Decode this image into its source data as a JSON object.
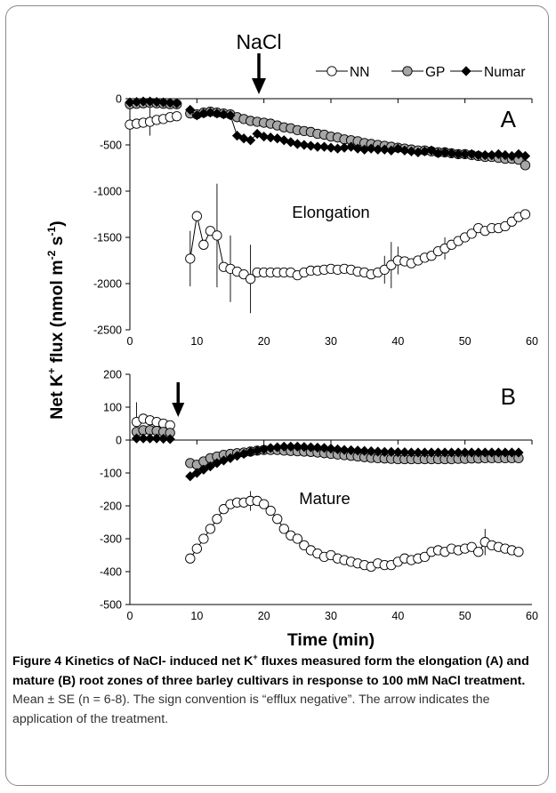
{
  "treatment_label": "NaCl",
  "ylabel": {
    "main": "Net K",
    "sup_k": "+",
    "mid": " flux (nmol m",
    "sup_m": "-2",
    "mid2": " s",
    "sup_s": "-1",
    "end": ")"
  },
  "colors": {
    "NN": "#ffffff",
    "GP": "#a6a6a6",
    "Numar": "#000000",
    "stroke": "#000000",
    "errorbar": "#000000"
  },
  "chart_data": [
    {
      "type": "scatter",
      "panel": "A",
      "annotation": "Elongation",
      "xlim": [
        0,
        60
      ],
      "ylim": [
        -2500,
        0
      ],
      "xticks": [
        0,
        10,
        20,
        30,
        40,
        50,
        60
      ],
      "yticks": [
        0,
        -500,
        -1000,
        -1500,
        -2000,
        -2500
      ],
      "arrow_x": 8.2,
      "legend": [
        "NN",
        "GP",
        "Numar"
      ],
      "legend_position": "top-right",
      "grid": false,
      "series": [
        {
          "name": "NN",
          "x": [
            0,
            1,
            2,
            3,
            4,
            5,
            6,
            7,
            9,
            10,
            11,
            12,
            13,
            14,
            15,
            16,
            17,
            18,
            19,
            20,
            21,
            22,
            23,
            24,
            25,
            26,
            27,
            28,
            29,
            30,
            31,
            32,
            33,
            34,
            35,
            36,
            37,
            38,
            39,
            40,
            41,
            42,
            43,
            44,
            45,
            46,
            47,
            48,
            49,
            50,
            51,
            52,
            53,
            54,
            55,
            56,
            57,
            58,
            59
          ],
          "y": [
            -280,
            -270,
            -260,
            -250,
            -230,
            -220,
            -200,
            -190,
            -1730,
            -1270,
            -1580,
            -1430,
            -1480,
            -1820,
            -1840,
            -1870,
            -1900,
            -1950,
            -1880,
            -1880,
            -1880,
            -1880,
            -1880,
            -1880,
            -1910,
            -1880,
            -1860,
            -1860,
            -1850,
            -1840,
            -1850,
            -1840,
            -1850,
            -1870,
            -1880,
            -1900,
            -1880,
            -1850,
            -1800,
            -1750,
            -1760,
            -1780,
            -1750,
            -1720,
            -1700,
            -1650,
            -1620,
            -1580,
            -1540,
            -1500,
            -1460,
            -1400,
            -1430,
            -1400,
            -1400,
            -1380,
            -1330,
            -1280,
            -1250
          ],
          "err": [
            0,
            0,
            0,
            150,
            0,
            0,
            0,
            0,
            300,
            0,
            0,
            0,
            560,
            0,
            360,
            0,
            0,
            370,
            0,
            0,
            0,
            0,
            0,
            0,
            0,
            0,
            0,
            0,
            0,
            0,
            0,
            0,
            0,
            0,
            0,
            0,
            0,
            150,
            250,
            150,
            0,
            0,
            0,
            0,
            0,
            0,
            120,
            0,
            0,
            0,
            0,
            0,
            0,
            0,
            0,
            0,
            0,
            0,
            0
          ]
        },
        {
          "name": "GP",
          "x": [
            0,
            1,
            2,
            3,
            4,
            5,
            6,
            7,
            9,
            10,
            11,
            12,
            13,
            14,
            15,
            16,
            17,
            18,
            19,
            20,
            21,
            22,
            23,
            24,
            25,
            26,
            27,
            28,
            29,
            30,
            31,
            32,
            33,
            34,
            35,
            36,
            37,
            38,
            39,
            40,
            41,
            42,
            43,
            44,
            45,
            46,
            47,
            48,
            49,
            50,
            51,
            52,
            53,
            54,
            55,
            56,
            57,
            58,
            59
          ],
          "y": [
            -60,
            -55,
            -50,
            -45,
            -50,
            -55,
            -60,
            -60,
            -160,
            -170,
            -150,
            -140,
            -150,
            -160,
            -170,
            -200,
            -220,
            -240,
            -250,
            -260,
            -270,
            -290,
            -310,
            -320,
            -340,
            -350,
            -360,
            -380,
            -390,
            -410,
            -420,
            -440,
            -450,
            -460,
            -480,
            -490,
            -500,
            -510,
            -520,
            -530,
            -540,
            -550,
            -560,
            -560,
            -570,
            -580,
            -580,
            -590,
            -600,
            -600,
            -610,
            -620,
            -630,
            -630,
            -640,
            -650,
            -650,
            -660,
            -720
          ],
          "err": [
            0,
            0,
            0,
            0,
            0,
            0,
            0,
            0,
            0,
            0,
            0,
            0,
            0,
            0,
            0,
            0,
            0,
            0,
            0,
            0,
            0,
            0,
            0,
            0,
            0,
            0,
            0,
            0,
            0,
            0,
            0,
            0,
            0,
            0,
            0,
            0,
            0,
            0,
            0,
            0,
            0,
            0,
            0,
            0,
            0,
            0,
            0,
            0,
            0,
            0,
            0,
            0,
            0,
            0,
            0,
            0,
            0,
            0,
            0
          ]
        },
        {
          "name": "Numar",
          "x": [
            0,
            1,
            2,
            3,
            4,
            5,
            6,
            7,
            9,
            10,
            11,
            12,
            13,
            14,
            15,
            16,
            17,
            18,
            19,
            20,
            21,
            22,
            23,
            24,
            25,
            26,
            27,
            28,
            29,
            30,
            31,
            32,
            33,
            34,
            35,
            36,
            37,
            38,
            39,
            40,
            41,
            42,
            43,
            44,
            45,
            46,
            47,
            48,
            49,
            50,
            51,
            52,
            53,
            54,
            55,
            56,
            57,
            58,
            59
          ],
          "y": [
            -40,
            -35,
            -30,
            -30,
            -35,
            -40,
            -45,
            -50,
            -120,
            -180,
            -160,
            -150,
            -160,
            -170,
            -180,
            -400,
            -430,
            -450,
            -380,
            -410,
            -420,
            -430,
            -450,
            -470,
            -490,
            -500,
            -510,
            -520,
            -520,
            -530,
            -540,
            -530,
            -520,
            -540,
            -550,
            -540,
            -550,
            -550,
            -560,
            -540,
            -560,
            -570,
            -580,
            -570,
            -560,
            -590,
            -580,
            -590,
            -600,
            -600,
            -600,
            -610,
            -610,
            -610,
            -600,
            -610,
            -620,
            -600,
            -620
          ],
          "err": [
            0,
            0,
            0,
            0,
            0,
            0,
            0,
            0,
            0,
            0,
            0,
            0,
            0,
            0,
            0,
            0,
            0,
            0,
            0,
            0,
            0,
            0,
            0,
            0,
            0,
            0,
            0,
            0,
            0,
            0,
            0,
            0,
            0,
            0,
            0,
            0,
            0,
            0,
            0,
            0,
            0,
            0,
            0,
            0,
            0,
            0,
            0,
            0,
            0,
            0,
            0,
            0,
            0,
            0,
            0,
            0,
            0,
            0,
            0
          ]
        }
      ]
    },
    {
      "type": "scatter",
      "panel": "B",
      "annotation": "Mature",
      "xlim": [
        0,
        60
      ],
      "ylim": [
        -500,
        200
      ],
      "xticks": [
        0,
        10,
        20,
        30,
        40,
        50,
        60
      ],
      "yticks": [
        200,
        100,
        0,
        -100,
        -200,
        -300,
        -400,
        -500
      ],
      "arrow_x": 7.2,
      "xlabel": "Time (min)",
      "grid": false,
      "series": [
        {
          "name": "NN",
          "x": [
            1,
            2,
            3,
            4,
            5,
            6,
            9,
            10,
            11,
            12,
            13,
            14,
            15,
            16,
            17,
            18,
            19,
            20,
            21,
            22,
            23,
            24,
            25,
            26,
            27,
            28,
            29,
            30,
            31,
            32,
            33,
            34,
            35,
            36,
            37,
            38,
            39,
            40,
            41,
            42,
            43,
            44,
            45,
            46,
            47,
            48,
            49,
            50,
            51,
            52,
            53,
            54,
            55,
            56,
            57,
            58
          ],
          "y": [
            55,
            65,
            60,
            55,
            50,
            45,
            -360,
            -330,
            -300,
            -270,
            -240,
            -210,
            -195,
            -190,
            -190,
            -185,
            -185,
            -195,
            -215,
            -240,
            -270,
            -290,
            -300,
            -320,
            -335,
            -345,
            -355,
            -350,
            -360,
            -365,
            -370,
            -375,
            -380,
            -385,
            -375,
            -380,
            -380,
            -370,
            -360,
            -365,
            -360,
            -355,
            -340,
            -335,
            -340,
            -330,
            -335,
            -330,
            -325,
            -340,
            -310,
            -320,
            -325,
            -330,
            -335,
            -340
          ],
          "err": [
            60,
            0,
            0,
            0,
            0,
            0,
            0,
            0,
            0,
            0,
            0,
            0,
            0,
            0,
            0,
            30,
            0,
            0,
            0,
            0,
            0,
            0,
            0,
            0,
            0,
            0,
            0,
            0,
            0,
            0,
            0,
            0,
            0,
            0,
            0,
            0,
            0,
            0,
            0,
            0,
            0,
            0,
            0,
            0,
            0,
            0,
            0,
            0,
            0,
            0,
            40,
            0,
            0,
            0,
            0,
            0
          ]
        },
        {
          "name": "GP",
          "x": [
            1,
            2,
            3,
            4,
            5,
            6,
            9,
            10,
            11,
            12,
            13,
            14,
            15,
            16,
            17,
            18,
            19,
            20,
            21,
            22,
            23,
            24,
            25,
            26,
            27,
            28,
            29,
            30,
            31,
            32,
            33,
            34,
            35,
            36,
            37,
            38,
            39,
            40,
            41,
            42,
            43,
            44,
            45,
            46,
            47,
            48,
            49,
            50,
            51,
            52,
            53,
            54,
            55,
            56,
            57,
            58
          ],
          "y": [
            25,
            30,
            30,
            28,
            25,
            22,
            -70,
            -75,
            -65,
            -55,
            -50,
            -45,
            -42,
            -40,
            -38,
            -35,
            -32,
            -30,
            -30,
            -30,
            -32,
            -33,
            -34,
            -35,
            -36,
            -38,
            -40,
            -42,
            -44,
            -46,
            -48,
            -50,
            -52,
            -54,
            -55,
            -56,
            -57,
            -58,
            -58,
            -58,
            -58,
            -58,
            -58,
            -58,
            -58,
            -58,
            -57,
            -57,
            -56,
            -56,
            -55,
            -55,
            -55,
            -55,
            -55,
            -55
          ],
          "err": [
            0,
            0,
            0,
            0,
            0,
            0,
            0,
            0,
            0,
            0,
            0,
            0,
            0,
            0,
            0,
            0,
            0,
            0,
            0,
            0,
            0,
            0,
            0,
            0,
            0,
            0,
            0,
            0,
            0,
            0,
            0,
            0,
            0,
            0,
            0,
            0,
            0,
            0,
            0,
            0,
            0,
            0,
            0,
            0,
            0,
            0,
            0,
            0,
            0,
            0,
            0,
            0,
            0,
            0,
            0,
            0
          ]
        },
        {
          "name": "Numar",
          "x": [
            1,
            2,
            3,
            4,
            5,
            6,
            9,
            10,
            11,
            12,
            13,
            14,
            15,
            16,
            17,
            18,
            19,
            20,
            21,
            22,
            23,
            24,
            25,
            26,
            27,
            28,
            29,
            30,
            31,
            32,
            33,
            34,
            35,
            36,
            37,
            38,
            39,
            40,
            41,
            42,
            43,
            44,
            45,
            46,
            47,
            48,
            49,
            50,
            51,
            52,
            53,
            54,
            55,
            56,
            57,
            58
          ],
          "y": [
            5,
            5,
            5,
            5,
            4,
            3,
            -110,
            -100,
            -90,
            -80,
            -70,
            -62,
            -55,
            -48,
            -42,
            -36,
            -32,
            -28,
            -24,
            -22,
            -20,
            -20,
            -20,
            -21,
            -22,
            -23,
            -24,
            -26,
            -28,
            -30,
            -31,
            -32,
            -33,
            -34,
            -35,
            -36,
            -36,
            -37,
            -37,
            -38,
            -38,
            -38,
            -38,
            -38,
            -38,
            -38,
            -38,
            -38,
            -38,
            -38,
            -38,
            -38,
            -38,
            -38,
            -38,
            -38
          ],
          "err": [
            0,
            0,
            0,
            0,
            0,
            0,
            0,
            0,
            0,
            0,
            0,
            0,
            0,
            0,
            0,
            0,
            0,
            0,
            0,
            0,
            0,
            0,
            0,
            0,
            0,
            0,
            0,
            0,
            0,
            0,
            0,
            0,
            0,
            0,
            0,
            0,
            0,
            0,
            0,
            0,
            0,
            0,
            0,
            0,
            0,
            0,
            0,
            0,
            0,
            0,
            0,
            0,
            0,
            0,
            0,
            0
          ]
        }
      ]
    }
  ],
  "caption": {
    "title_start": "Figure 4 Kinetics of NaCl- induced net K",
    "title_sup": "+",
    "title_end": " fluxes measured form the elongation (A) and mature (B) root zones of three barley cultivars in response to 100 mM NaCl treatment.",
    "body": " Mean ± SE (n = 6-8). The sign convention is “efflux negative”. The arrow indicates the application of the treatment."
  }
}
